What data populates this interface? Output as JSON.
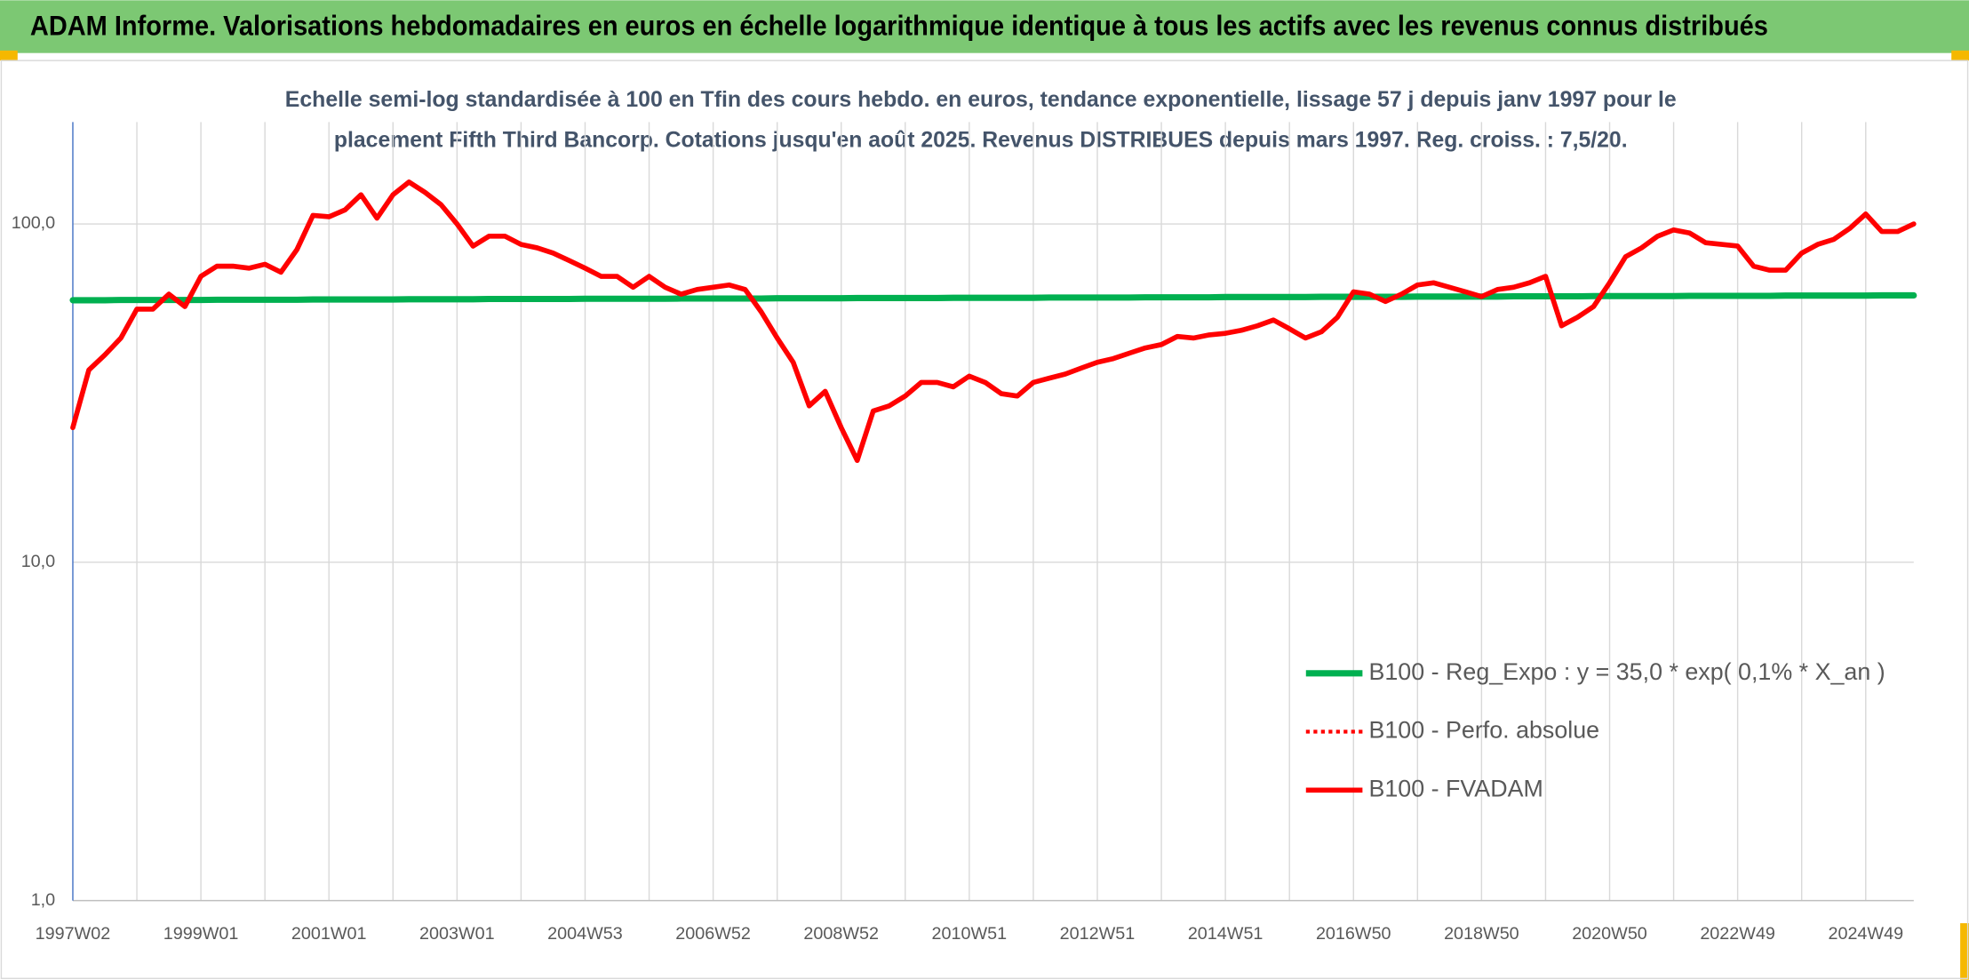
{
  "chart_data": {
    "type": "line",
    "title": "ADAM Informe. Valorisations hebdomadaires en euros en échelle logarithmique identique à tous les actifs avec les revenus connus distribués",
    "subtitle": [
      "Echelle semi-log standardisée à 100 en Tfin des cours hebdo. en euros, tendance exponentielle, lissage 57 j depuis janv 1997 pour le",
      "placement Fifth Third Bancorp. Cotations jusqu'en août 2025. Revenus DISTRIBUES depuis mars 1997. Reg. croiss. : 7,5/20."
    ],
    "categories": [
      "1997W02",
      null,
      null,
      null,
      null,
      null,
      null,
      null,
      "1999W01",
      null,
      null,
      null,
      null,
      null,
      null,
      null,
      "2001W01",
      null,
      null,
      null,
      null,
      null,
      null,
      null,
      "2003W01",
      null,
      null,
      null,
      null,
      null,
      null,
      null,
      "2004W53",
      null,
      null,
      null,
      null,
      null,
      null,
      null,
      "2006W52",
      null,
      null,
      null,
      null,
      null,
      null,
      null,
      "2008W52",
      null,
      null,
      null,
      null,
      null,
      null,
      null,
      "2010W51",
      null,
      null,
      null,
      null,
      null,
      null,
      null,
      "2012W51",
      null,
      null,
      null,
      null,
      null,
      null,
      null,
      "2014W51",
      null,
      null,
      null,
      null,
      null,
      null,
      null,
      "2016W50",
      null,
      null,
      null,
      null,
      null,
      null,
      null,
      "2018W50",
      null,
      null,
      null,
      null,
      null,
      null,
      null,
      "2020W50",
      null,
      null,
      null,
      null,
      null,
      null,
      null,
      "2022W49",
      null,
      null,
      null,
      null,
      null,
      null,
      null,
      "2024W49",
      null,
      null,
      null
    ],
    "series": [
      {
        "name": "B100 - Reg_Expo : y = 35,0 * exp( 0,1% *  X_an )",
        "color": "#00b050",
        "line_style": "solid",
        "values": [
          59.5,
          59.5,
          59.5,
          59.6,
          59.6,
          59.6,
          59.6,
          59.6,
          59.6,
          59.7,
          59.7,
          59.7,
          59.7,
          59.7,
          59.7,
          59.8,
          59.8,
          59.8,
          59.8,
          59.8,
          59.8,
          59.9,
          59.9,
          59.9,
          59.9,
          59.9,
          60.0,
          60.0,
          60.0,
          60.0,
          60.0,
          60.0,
          60.1,
          60.1,
          60.1,
          60.1,
          60.1,
          60.1,
          60.2,
          60.2,
          60.2,
          60.2,
          60.2,
          60.2,
          60.3,
          60.3,
          60.3,
          60.3,
          60.3,
          60.4,
          60.4,
          60.4,
          60.4,
          60.4,
          60.4,
          60.5,
          60.5,
          60.5,
          60.5,
          60.5,
          60.5,
          60.6,
          60.6,
          60.6,
          60.6,
          60.6,
          60.6,
          60.7,
          60.7,
          60.7,
          60.7,
          60.7,
          60.8,
          60.8,
          60.8,
          60.8,
          60.8,
          60.8,
          60.9,
          60.9,
          60.9,
          60.9,
          60.9,
          60.9,
          61.0,
          61.0,
          61.0,
          61.0,
          61.0,
          61.0,
          61.1,
          61.1,
          61.1,
          61.1,
          61.1,
          61.2,
          61.2,
          61.2,
          61.2,
          61.2,
          61.2,
          61.3,
          61.3,
          61.3,
          61.3,
          61.3,
          61.3,
          61.4,
          61.4,
          61.4,
          61.4,
          61.4,
          61.4,
          61.5,
          61.5,
          61.5
        ]
      },
      {
        "name": "B100 - Perfo. absolue",
        "color": "#ff0000",
        "line_style": "dotted",
        "values": [
          25,
          37,
          41,
          46,
          56,
          56,
          62,
          57,
          70,
          75,
          75,
          74,
          76,
          72,
          84,
          106,
          105,
          110,
          122,
          104,
          122,
          133,
          124,
          114,
          100,
          86,
          92,
          92,
          87,
          85,
          82,
          78,
          74,
          70,
          70,
          65,
          70,
          65,
          62,
          64,
          65,
          66,
          64,
          55,
          46,
          39,
          29,
          32,
          25,
          20,
          28,
          29,
          31,
          34,
          34,
          33,
          35.5,
          34,
          31.5,
          31,
          34,
          35,
          36,
          37.5,
          39,
          40,
          41.5,
          43,
          44,
          46.5,
          46,
          47,
          47.5,
          48.5,
          50,
          52,
          49,
          46,
          48,
          53,
          63,
          62,
          59,
          62,
          66,
          67,
          65,
          63,
          61,
          64,
          65,
          67,
          70,
          50,
          53,
          57,
          67,
          80,
          85,
          92,
          96,
          94,
          88,
          87,
          86,
          75,
          73,
          73,
          82,
          87,
          90,
          97,
          107,
          95,
          95,
          100
        ]
      },
      {
        "name": "B100 - FVADAM",
        "color": "#ff0000",
        "line_style": "solid",
        "values": [
          25,
          37,
          41,
          46,
          56,
          56,
          62,
          57,
          70,
          75,
          75,
          74,
          76,
          72,
          84,
          106,
          105,
          110,
          122,
          104,
          122,
          133,
          124,
          114,
          100,
          86,
          92,
          92,
          87,
          85,
          82,
          78,
          74,
          70,
          70,
          65,
          70,
          65,
          62,
          64,
          65,
          66,
          64,
          55,
          46,
          39,
          29,
          32,
          25,
          20,
          28,
          29,
          31,
          34,
          34,
          33,
          35.5,
          34,
          31.5,
          31,
          34,
          35,
          36,
          37.5,
          39,
          40,
          41.5,
          43,
          44,
          46.5,
          46,
          47,
          47.5,
          48.5,
          50,
          52,
          49,
          46,
          48,
          53,
          63,
          62,
          59,
          62,
          66,
          67,
          65,
          63,
          61,
          64,
          65,
          67,
          70,
          50,
          53,
          57,
          67,
          80,
          85,
          92,
          96,
          94,
          88,
          87,
          86,
          75,
          73,
          73,
          82,
          87,
          90,
          97,
          107,
          95,
          95,
          100
        ]
      }
    ],
    "ylim": [
      1,
      200
    ],
    "log_scale": true,
    "yticks": [
      {
        "value": 1,
        "label": "1,0"
      },
      {
        "value": 10,
        "label": "10,0"
      },
      {
        "value": 100,
        "label": "100,0"
      }
    ],
    "grid": true,
    "legend_position": "lower right"
  }
}
